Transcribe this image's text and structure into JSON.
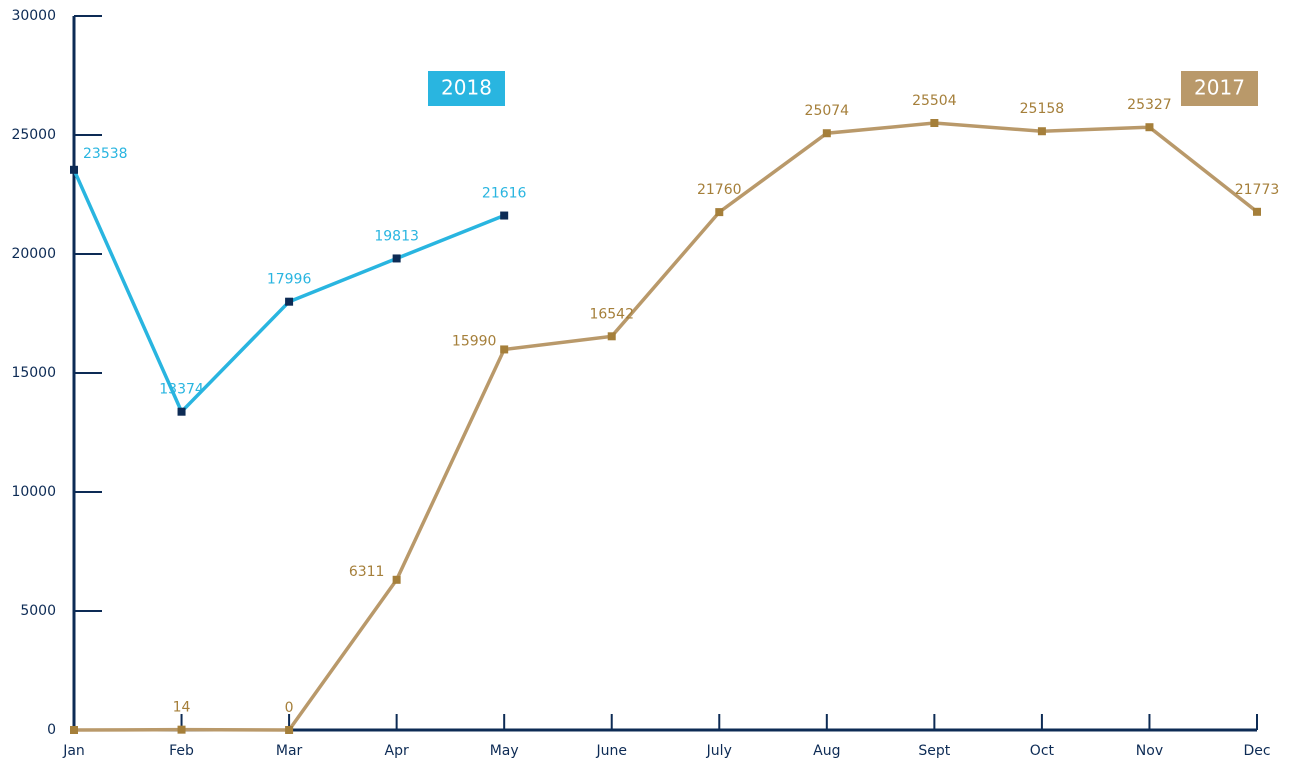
{
  "chart_data": {
    "type": "line",
    "categories": [
      "Jan",
      "Feb",
      "Mar",
      "Apr",
      "May",
      "June",
      "July",
      "Aug",
      "Sept",
      "Oct",
      "Nov",
      "Dec"
    ],
    "series": [
      {
        "name": "2018",
        "color": "#29b5e0",
        "marker_color": "#0d2b55",
        "values": [
          23538,
          13374,
          17996,
          19813,
          21616,
          null,
          null,
          null,
          null,
          null,
          null,
          null
        ]
      },
      {
        "name": "2017",
        "color": "#b9996a",
        "marker_color": "#a57f3a",
        "values": [
          0,
          14,
          0,
          6311,
          15990,
          16542,
          21760,
          25074,
          25504,
          25158,
          25327,
          21773
        ],
        "value_labels": [
          null,
          "14",
          "0",
          "6311",
          "15990",
          "16542",
          "21760",
          "25074",
          "25504",
          "25158",
          "25327",
          "21773"
        ]
      }
    ],
    "ylim": [
      0,
      30000
    ],
    "yticks": [
      0,
      5000,
      10000,
      15000,
      20000,
      25000,
      30000
    ],
    "axis_color": "#0d2b55"
  }
}
